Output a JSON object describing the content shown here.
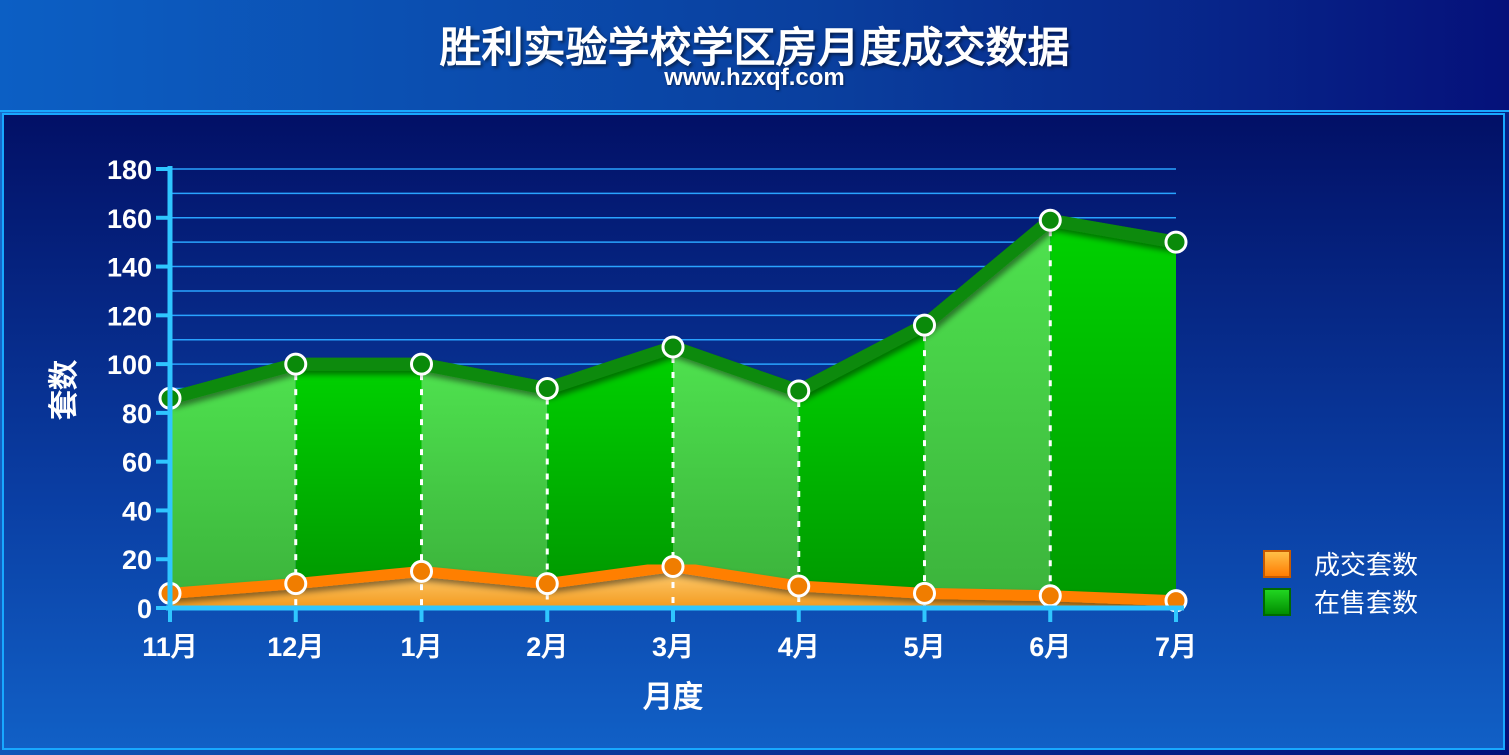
{
  "header": {
    "title": "胜利实验学校学区房月度成交数据",
    "subtitle": "www.hzxqf.com"
  },
  "colors": {
    "sale_area_light": "#4be04b",
    "sale_area_dark": "#00b400",
    "sale_line": "#0a8a0a",
    "deal_area": "#ffb347",
    "deal_line": "#ff7f00",
    "grid": "#29a3ff",
    "axis": "#2fc6ff"
  },
  "chart_data": {
    "type": "area",
    "x": [
      "11月",
      "12月",
      "1月",
      "2月",
      "3月",
      "4月",
      "5月",
      "6月",
      "7月"
    ],
    "series": [
      {
        "name": "成交套数",
        "values": [
          6,
          10,
          15,
          10,
          17,
          9,
          6,
          5,
          3
        ]
      },
      {
        "name": "在售套数",
        "values": [
          86,
          100,
          100,
          90,
          107,
          89,
          116,
          159,
          150
        ]
      }
    ],
    "xlabel": "月度",
    "ylabel": "套数",
    "ylim": [
      0,
      180
    ],
    "yticks": [
      0,
      20,
      40,
      60,
      80,
      100,
      120,
      140,
      160,
      180
    ],
    "grid": true,
    "legend": "right"
  }
}
